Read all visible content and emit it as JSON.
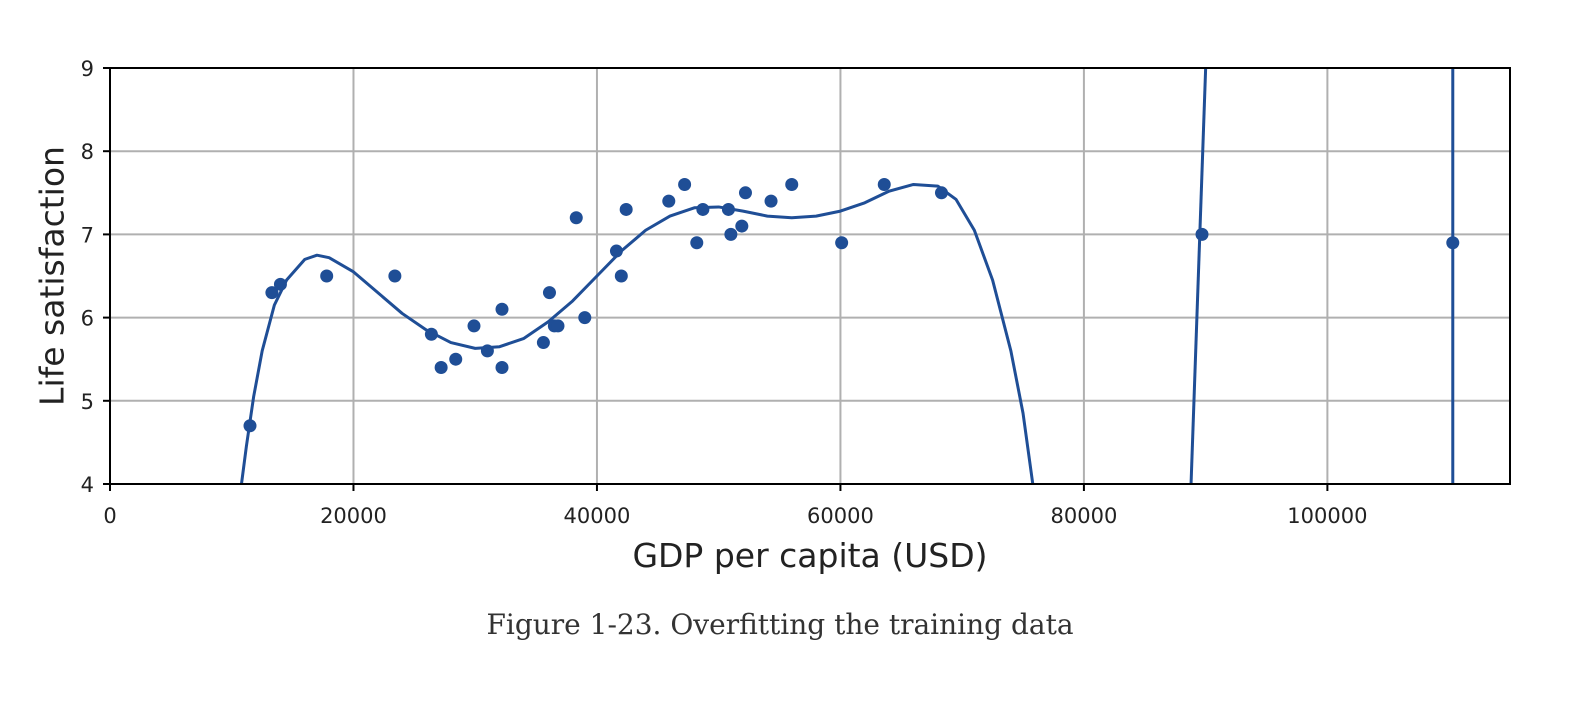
{
  "chart_data": {
    "type": "scatter",
    "xlabel": "GDP per capita (USD)",
    "ylabel": "Life satisfaction",
    "xlim": [
      0,
      115000
    ],
    "ylim": [
      4,
      9
    ],
    "xticks": [
      0,
      20000,
      40000,
      60000,
      80000,
      100000
    ],
    "yticks": [
      4,
      5,
      6,
      7,
      8,
      9
    ],
    "grid": true,
    "colors": {
      "series": "#1f4e96",
      "grid": "#b0b0b0",
      "axis": "#000000"
    },
    "points": [
      {
        "x": 11500,
        "y": 4.7
      },
      {
        "x": 13300,
        "y": 6.3
      },
      {
        "x": 14000,
        "y": 6.4
      },
      {
        "x": 17800,
        "y": 6.5
      },
      {
        "x": 23400,
        "y": 6.5
      },
      {
        "x": 26400,
        "y": 5.8
      },
      {
        "x": 27200,
        "y": 5.4
      },
      {
        "x": 28400,
        "y": 5.5
      },
      {
        "x": 29900,
        "y": 5.9
      },
      {
        "x": 31000,
        "y": 5.6
      },
      {
        "x": 32200,
        "y": 6.1
      },
      {
        "x": 32200,
        "y": 5.4
      },
      {
        "x": 35600,
        "y": 5.7
      },
      {
        "x": 36100,
        "y": 6.3
      },
      {
        "x": 36500,
        "y": 5.9
      },
      {
        "x": 36800,
        "y": 5.9
      },
      {
        "x": 38300,
        "y": 7.2
      },
      {
        "x": 39000,
        "y": 6.0
      },
      {
        "x": 41600,
        "y": 6.8
      },
      {
        "x": 42000,
        "y": 6.5
      },
      {
        "x": 42400,
        "y": 7.3
      },
      {
        "x": 45900,
        "y": 7.4
      },
      {
        "x": 47200,
        "y": 7.6
      },
      {
        "x": 48200,
        "y": 6.9
      },
      {
        "x": 48700,
        "y": 7.3
      },
      {
        "x": 50800,
        "y": 7.3
      },
      {
        "x": 51000,
        "y": 7.0
      },
      {
        "x": 51900,
        "y": 7.1
      },
      {
        "x": 52200,
        "y": 7.5
      },
      {
        "x": 54300,
        "y": 7.4
      },
      {
        "x": 56000,
        "y": 7.6
      },
      {
        "x": 60100,
        "y": 6.9
      },
      {
        "x": 63600,
        "y": 7.6
      },
      {
        "x": 68300,
        "y": 7.5
      },
      {
        "x": 89700,
        "y": 7.0
      },
      {
        "x": 110300,
        "y": 6.9
      }
    ],
    "curve_x": [
      10800,
      11200,
      11800,
      12500,
      13500,
      14500,
      16000,
      17000,
      18000,
      20000,
      22000,
      24000,
      26000,
      28000,
      30000,
      32000,
      34000,
      36000,
      38000,
      40000,
      42000,
      44000,
      46000,
      48000,
      50000,
      52000,
      54000,
      56000,
      58000,
      60000,
      62000,
      64000,
      66000,
      68000,
      69500,
      71000,
      72500,
      74000,
      75000,
      75800
    ],
    "curve_y": [
      4.0,
      4.45,
      5.05,
      5.6,
      6.15,
      6.45,
      6.7,
      6.75,
      6.72,
      6.55,
      6.3,
      6.05,
      5.85,
      5.7,
      5.63,
      5.65,
      5.75,
      5.95,
      6.2,
      6.5,
      6.8,
      7.05,
      7.22,
      7.32,
      7.33,
      7.28,
      7.22,
      7.2,
      7.22,
      7.28,
      7.38,
      7.52,
      7.6,
      7.58,
      7.42,
      7.05,
      6.45,
      5.6,
      4.85,
      4.0
    ],
    "lines": [
      {
        "x": [
          88800,
          90000
        ],
        "y": [
          4,
          9
        ]
      },
      {
        "x": [
          110300,
          110300
        ],
        "y": [
          4,
          9
        ]
      }
    ]
  },
  "caption": "Figure 1-23. Overfitting the training data"
}
